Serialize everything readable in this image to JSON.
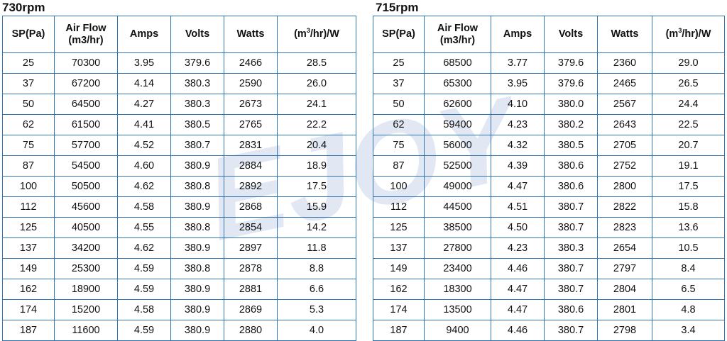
{
  "watermark_text": "EJOY",
  "left": {
    "title": "730rpm",
    "headers": {
      "sp": "SP(Pa)",
      "airflow_1": "Air Flow",
      "airflow_2": "(m3/hr)",
      "amps": "Amps",
      "volts": "Volts",
      "watts": "Watts",
      "eff_pre": "(m",
      "eff_sup": "3",
      "eff_post": "/hr)/W"
    },
    "rows": [
      [
        "25",
        "70300",
        "3.95",
        "379.6",
        "2466",
        "28.5"
      ],
      [
        "37",
        "67200",
        "4.14",
        "380.3",
        "2590",
        "26.0"
      ],
      [
        "50",
        "64500",
        "4.27",
        "380.3",
        "2673",
        "24.1"
      ],
      [
        "62",
        "61500",
        "4.41",
        "380.5",
        "2765",
        "22.2"
      ],
      [
        "75",
        "57700",
        "4.52",
        "380.7",
        "2831",
        "20.4"
      ],
      [
        "87",
        "54500",
        "4.60",
        "380.9",
        "2884",
        "18.9"
      ],
      [
        "100",
        "50500",
        "4.62",
        "380.8",
        "2892",
        "17.5"
      ],
      [
        "112",
        "45600",
        "4.58",
        "380.9",
        "2868",
        "15.9"
      ],
      [
        "125",
        "40500",
        "4.55",
        "380.8",
        "2854",
        "14.2"
      ],
      [
        "137",
        "34200",
        "4.62",
        "380.9",
        "2897",
        "11.8"
      ],
      [
        "149",
        "25300",
        "4.59",
        "380.8",
        "2878",
        "8.8"
      ],
      [
        "162",
        "18900",
        "4.59",
        "380.9",
        "2881",
        "6.6"
      ],
      [
        "174",
        "15200",
        "4.58",
        "380.9",
        "2869",
        "5.3"
      ],
      [
        "187",
        "11600",
        "4.59",
        "380.9",
        "2880",
        "4.0"
      ]
    ]
  },
  "right": {
    "title": "715rpm",
    "headers": {
      "sp": "SP(Pa)",
      "airflow_1": "Air Flow",
      "airflow_2": "(m3/hr)",
      "amps": "Amps",
      "volts": "Volts",
      "watts": "Watts",
      "eff_pre": "(m",
      "eff_sup": "3",
      "eff_post": "/hr)/W"
    },
    "rows": [
      [
        "25",
        "68500",
        "3.77",
        "379.6",
        "2360",
        "29.0"
      ],
      [
        "37",
        "65300",
        "3.95",
        "379.6",
        "2465",
        "26.5"
      ],
      [
        "50",
        "62600",
        "4.10",
        "380.0",
        "2567",
        "24.4"
      ],
      [
        "62",
        "59400",
        "4.23",
        "380.2",
        "2643",
        "22.5"
      ],
      [
        "75",
        "56000",
        "4.32",
        "380.5",
        "2705",
        "20.7"
      ],
      [
        "87",
        "52500",
        "4.39",
        "380.6",
        "2752",
        "19.1"
      ],
      [
        "100",
        "49000",
        "4.47",
        "380.6",
        "2800",
        "17.5"
      ],
      [
        "112",
        "44500",
        "4.51",
        "380.7",
        "2822",
        "15.8"
      ],
      [
        "125",
        "38500",
        "4.50",
        "380.7",
        "2823",
        "13.6"
      ],
      [
        "137",
        "27800",
        "4.23",
        "380.3",
        "2654",
        "10.5"
      ],
      [
        "149",
        "23400",
        "4.46",
        "380.7",
        "2797",
        "8.4"
      ],
      [
        "162",
        "18300",
        "4.47",
        "380.7",
        "2804",
        "6.5"
      ],
      [
        "174",
        "13500",
        "4.47",
        "380.6",
        "2801",
        "4.8"
      ],
      [
        "187",
        "9400",
        "4.46",
        "380.7",
        "2798",
        "3.4"
      ]
    ]
  }
}
